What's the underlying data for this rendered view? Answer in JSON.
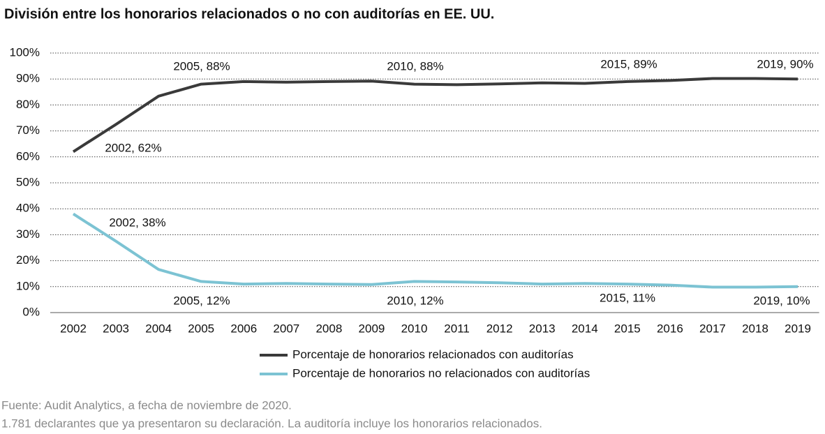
{
  "chart_data": {
    "type": "line",
    "title": "División entre los honorarios relacionados o no con auditorías en EE. UU.",
    "categories": [
      "2002",
      "2003",
      "2004",
      "2005",
      "2006",
      "2007",
      "2008",
      "2009",
      "2010",
      "2011",
      "2012",
      "2013",
      "2014",
      "2015",
      "2016",
      "2017",
      "2018",
      "2019"
    ],
    "series": [
      {
        "name": "Porcentaje de honorarios relacionados con auditorías",
        "color": "#3a3a3a",
        "values": [
          62,
          72.5,
          83.4,
          88,
          89,
          88.8,
          89,
          89.2,
          88,
          87.8,
          88.1,
          88.5,
          88.3,
          89,
          89.4,
          90.2,
          90.2,
          90
        ]
      },
      {
        "name": "Porcentaje de honorarios no relacionados con auditorías",
        "color": "#7cc3d3",
        "values": [
          38,
          27.5,
          16.6,
          12,
          11,
          11.2,
          11,
          10.8,
          12,
          11.8,
          11.5,
          11,
          11.2,
          11,
          10.6,
          9.8,
          9.8,
          10
        ]
      }
    ],
    "ylim": [
      0,
      100
    ],
    "yticks": [
      {
        "value": 0,
        "label": "0%"
      },
      {
        "value": 10,
        "label": "10%"
      },
      {
        "value": 20,
        "label": "20%"
      },
      {
        "value": 30,
        "label": "30%"
      },
      {
        "value": 40,
        "label": "40%"
      },
      {
        "value": 50,
        "label": "50%"
      },
      {
        "value": 60,
        "label": "60%"
      },
      {
        "value": 70,
        "label": "70%"
      },
      {
        "value": 80,
        "label": "80%"
      },
      {
        "value": 90,
        "label": "90%"
      },
      {
        "value": 100,
        "label": "100%"
      }
    ],
    "grid": true,
    "annotations": [
      "2005, 88%",
      "2010, 88%",
      "2015, 89%",
      "2019, 90%",
      "2002, 62%",
      "2002, 38%",
      "2005, 12%",
      "2010, 12%",
      "2015, 11%",
      "2019, 10%"
    ],
    "notes": [
      "Fuente: Audit Analytics, a fecha de noviembre de 2020.",
      "1.781 declarantes que ya presentaron su declaración. La auditoría incluye los honorarios relacionados."
    ]
  }
}
